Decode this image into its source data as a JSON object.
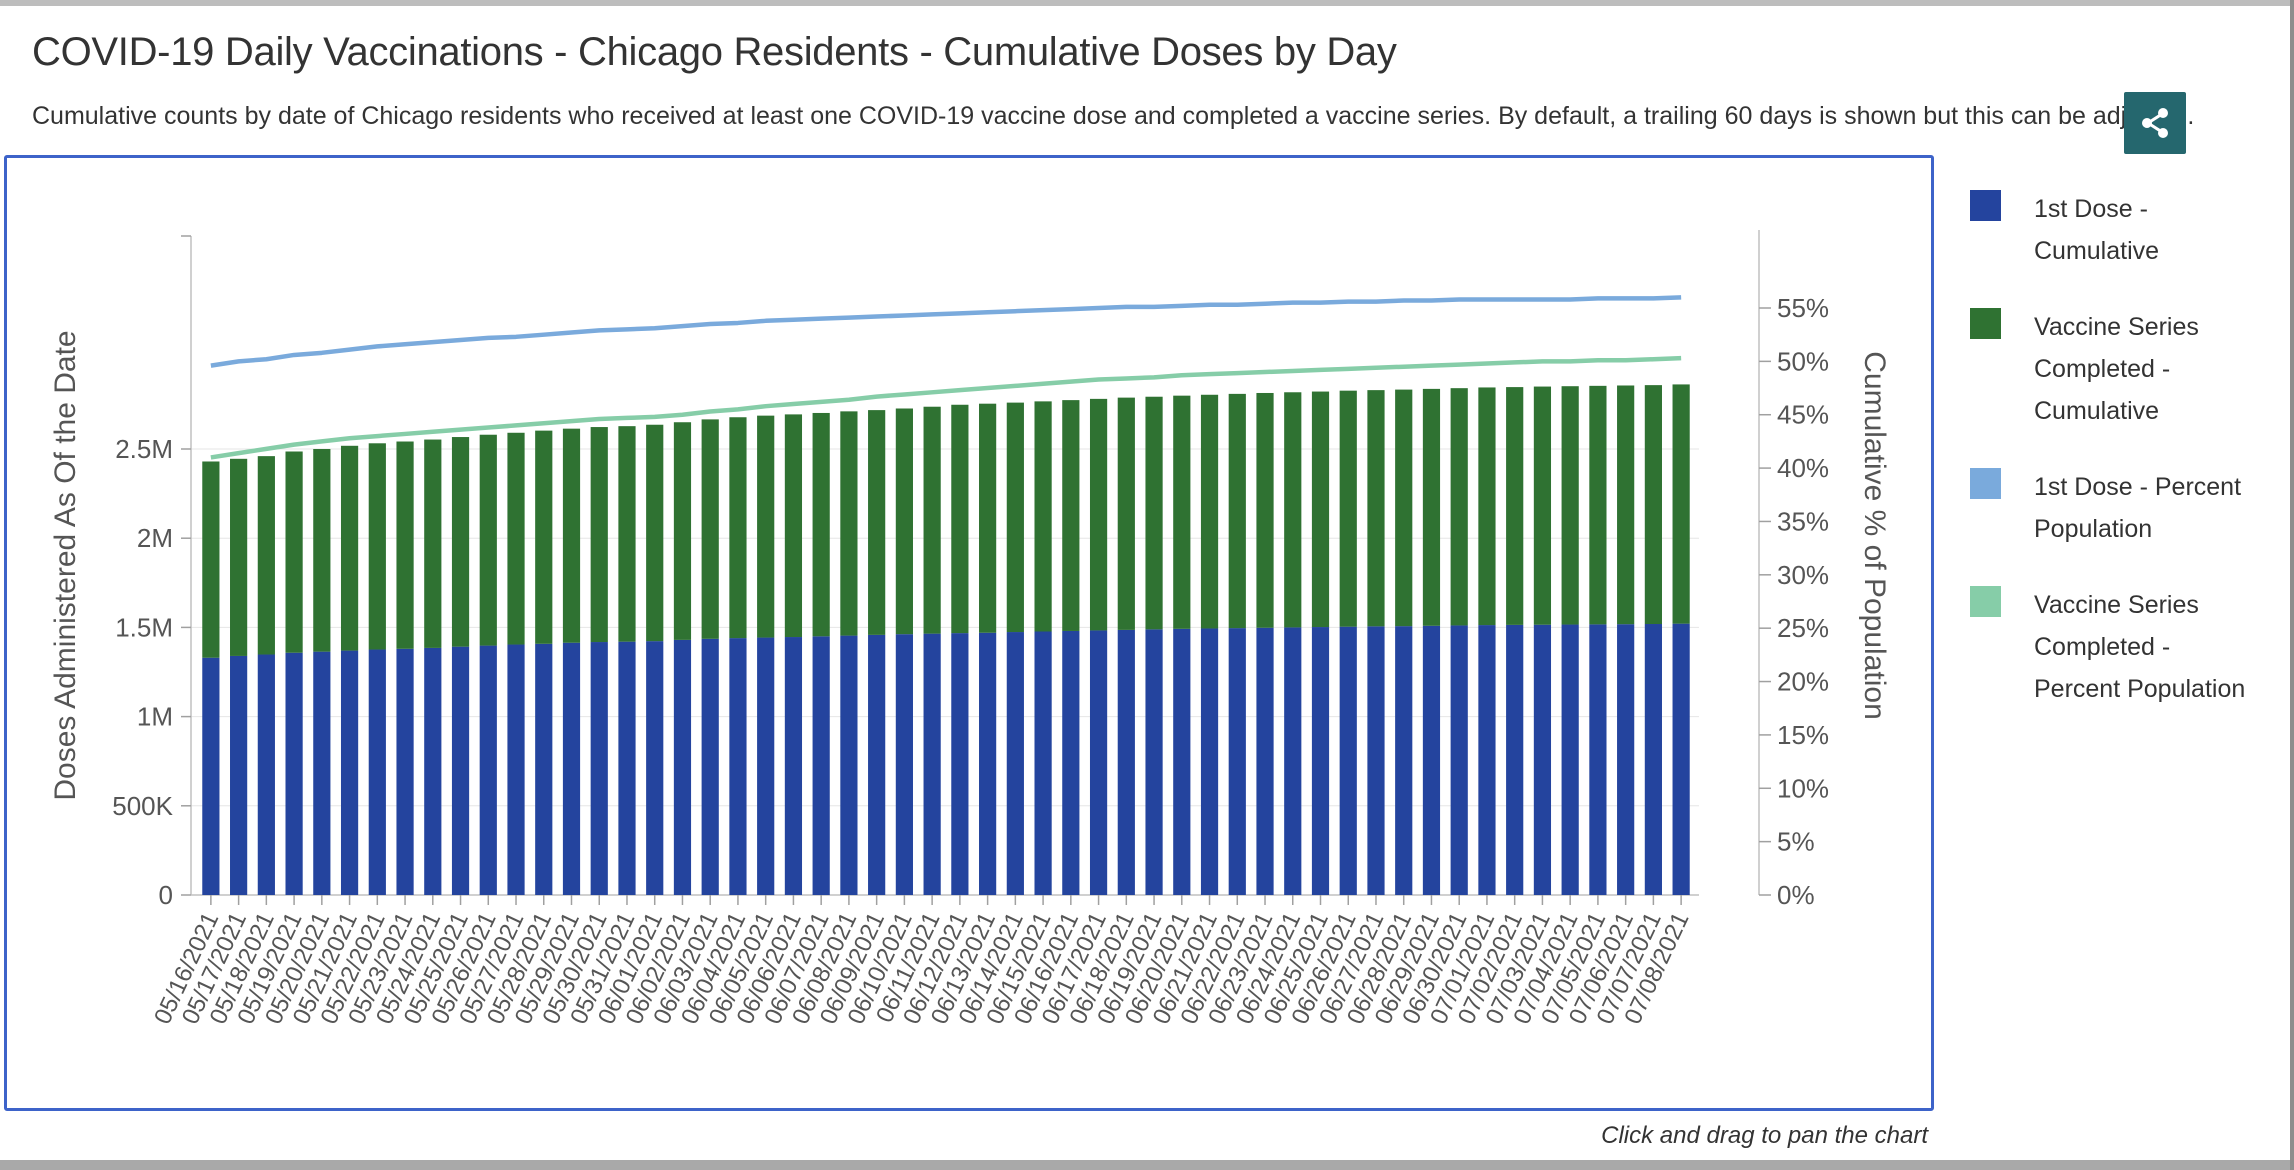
{
  "header": {
    "title": "COVID-19 Daily Vaccinations - Chicago Residents - Cumulative Doses by Day",
    "subtitle": "Cumulative counts by date of Chicago residents who received at least one COVID-19 vaccine dose and completed a vaccine series. By default, a trailing 60 days is shown but this can be adjusted."
  },
  "share_button": {
    "icon": "share-icon",
    "color": "#25676e"
  },
  "footer": {
    "pan_hint": "Click and drag to pan the chart"
  },
  "legend": {
    "items": [
      {
        "label": "1st Dose - Cumulative",
        "color": "#24449e"
      },
      {
        "label": "Vaccine Series Completed - Cumulative",
        "color": "#2f7232"
      },
      {
        "label": "1st Dose - Percent Population",
        "color": "#7aaadc"
      },
      {
        "label": "Vaccine Series Completed - Percent Population",
        "color": "#86cda8"
      }
    ]
  },
  "chart_data": {
    "type": "bar",
    "stacked": true,
    "title": "",
    "xlabel": "",
    "ylabel": "Doses Administered As Of the Date",
    "y2label": "Cumulative % of Population",
    "ylim": [
      0,
      2880000
    ],
    "y2lim": [
      0,
      56.5
    ],
    "yticks": [
      "0",
      "500K",
      "1M",
      "1.5M",
      "2M",
      "2.5M"
    ],
    "y2ticks": [
      "0%",
      "5%",
      "10%",
      "15%",
      "20%",
      "25%",
      "30%",
      "35%",
      "40%",
      "45%",
      "50%",
      "55%"
    ],
    "grid": true,
    "legend_position": "right",
    "categories": [
      "05/16/2021",
      "05/17/2021",
      "05/18/2021",
      "05/19/2021",
      "05/20/2021",
      "05/21/2021",
      "05/22/2021",
      "05/23/2021",
      "05/24/2021",
      "05/25/2021",
      "05/26/2021",
      "05/27/2021",
      "05/28/2021",
      "05/29/2021",
      "05/30/2021",
      "05/31/2021",
      "06/01/2021",
      "06/02/2021",
      "06/03/2021",
      "06/04/2021",
      "06/05/2021",
      "06/06/2021",
      "06/07/2021",
      "06/08/2021",
      "06/09/2021",
      "06/10/2021",
      "06/11/2021",
      "06/12/2021",
      "06/13/2021",
      "06/14/2021",
      "06/15/2021",
      "06/16/2021",
      "06/17/2021",
      "06/18/2021",
      "06/19/2021",
      "06/20/2021",
      "06/21/2021",
      "06/22/2021",
      "06/23/2021",
      "06/24/2021",
      "06/25/2021",
      "06/26/2021",
      "06/27/2021",
      "06/28/2021",
      "06/29/2021",
      "06/30/2021",
      "07/01/2021",
      "07/02/2021",
      "07/03/2021",
      "07/04/2021",
      "07/05/2021",
      "07/06/2021",
      "07/07/2021",
      "07/08/2021"
    ],
    "series": [
      {
        "name": "1st Dose - Cumulative",
        "type": "bar",
        "axis": "left",
        "values": [
          1330000,
          1340000,
          1348000,
          1358000,
          1364000,
          1370000,
          1376000,
          1380000,
          1385000,
          1392000,
          1398000,
          1404000,
          1408000,
          1414000,
          1418000,
          1420000,
          1423000,
          1430000,
          1436000,
          1440000,
          1443000,
          1446000,
          1450000,
          1454000,
          1458000,
          1462000,
          1465000,
          1468000,
          1470000,
          1474000,
          1477000,
          1480000,
          1483000,
          1486000,
          1489000,
          1492000,
          1494000,
          1496000,
          1498000,
          1500000,
          1502000,
          1504000,
          1506000,
          1507000,
          1509000,
          1511000,
          1513000,
          1514000,
          1515000,
          1516000,
          1517000,
          1518000,
          1519000,
          1521000
        ]
      },
      {
        "name": "Vaccine Series Completed - Cumulative",
        "type": "bar",
        "axis": "left",
        "values": [
          1100000,
          1105000,
          1112000,
          1128000,
          1136000,
          1148000,
          1156000,
          1162000,
          1168000,
          1175000,
          1182000,
          1187000,
          1195000,
          1200000,
          1205000,
          1208000,
          1213000,
          1220000,
          1230000,
          1238000,
          1244000,
          1248000,
          1252000,
          1257000,
          1260000,
          1265000,
          1272000,
          1280000,
          1284000,
          1286000,
          1290000,
          1294000,
          1298000,
          1302000,
          1304000,
          1307000,
          1310000,
          1313000,
          1316000,
          1318000,
          1320000,
          1323000,
          1324000,
          1326000,
          1328000,
          1330000,
          1332000,
          1333000,
          1335000,
          1336000,
          1337000,
          1338000,
          1339000,
          1341000
        ]
      },
      {
        "name": "1st Dose - Percent Population",
        "type": "line",
        "axis": "right",
        "values": [
          49.6,
          50.0,
          50.2,
          50.6,
          50.8,
          51.1,
          51.4,
          51.6,
          51.8,
          52.0,
          52.2,
          52.3,
          52.5,
          52.7,
          52.9,
          53.0,
          53.1,
          53.3,
          53.5,
          53.6,
          53.8,
          53.9,
          54.0,
          54.1,
          54.2,
          54.3,
          54.4,
          54.5,
          54.6,
          54.7,
          54.8,
          54.9,
          55.0,
          55.1,
          55.1,
          55.2,
          55.3,
          55.3,
          55.4,
          55.5,
          55.5,
          55.6,
          55.6,
          55.7,
          55.7,
          55.8,
          55.8,
          55.8,
          55.8,
          55.8,
          55.9,
          55.9,
          55.9,
          56.0
        ]
      },
      {
        "name": "Vaccine Series Completed - Percent Population",
        "type": "line",
        "axis": "right",
        "values": [
          41.0,
          41.4,
          41.8,
          42.2,
          42.5,
          42.8,
          43.0,
          43.2,
          43.4,
          43.6,
          43.8,
          44.0,
          44.2,
          44.4,
          44.6,
          44.7,
          44.8,
          45.0,
          45.3,
          45.5,
          45.8,
          46.0,
          46.2,
          46.4,
          46.7,
          46.9,
          47.1,
          47.3,
          47.5,
          47.7,
          47.9,
          48.1,
          48.3,
          48.4,
          48.5,
          48.7,
          48.8,
          48.9,
          49.0,
          49.1,
          49.2,
          49.3,
          49.4,
          49.5,
          49.6,
          49.7,
          49.8,
          49.9,
          50.0,
          50.0,
          50.1,
          50.1,
          50.2,
          50.3
        ]
      }
    ]
  }
}
